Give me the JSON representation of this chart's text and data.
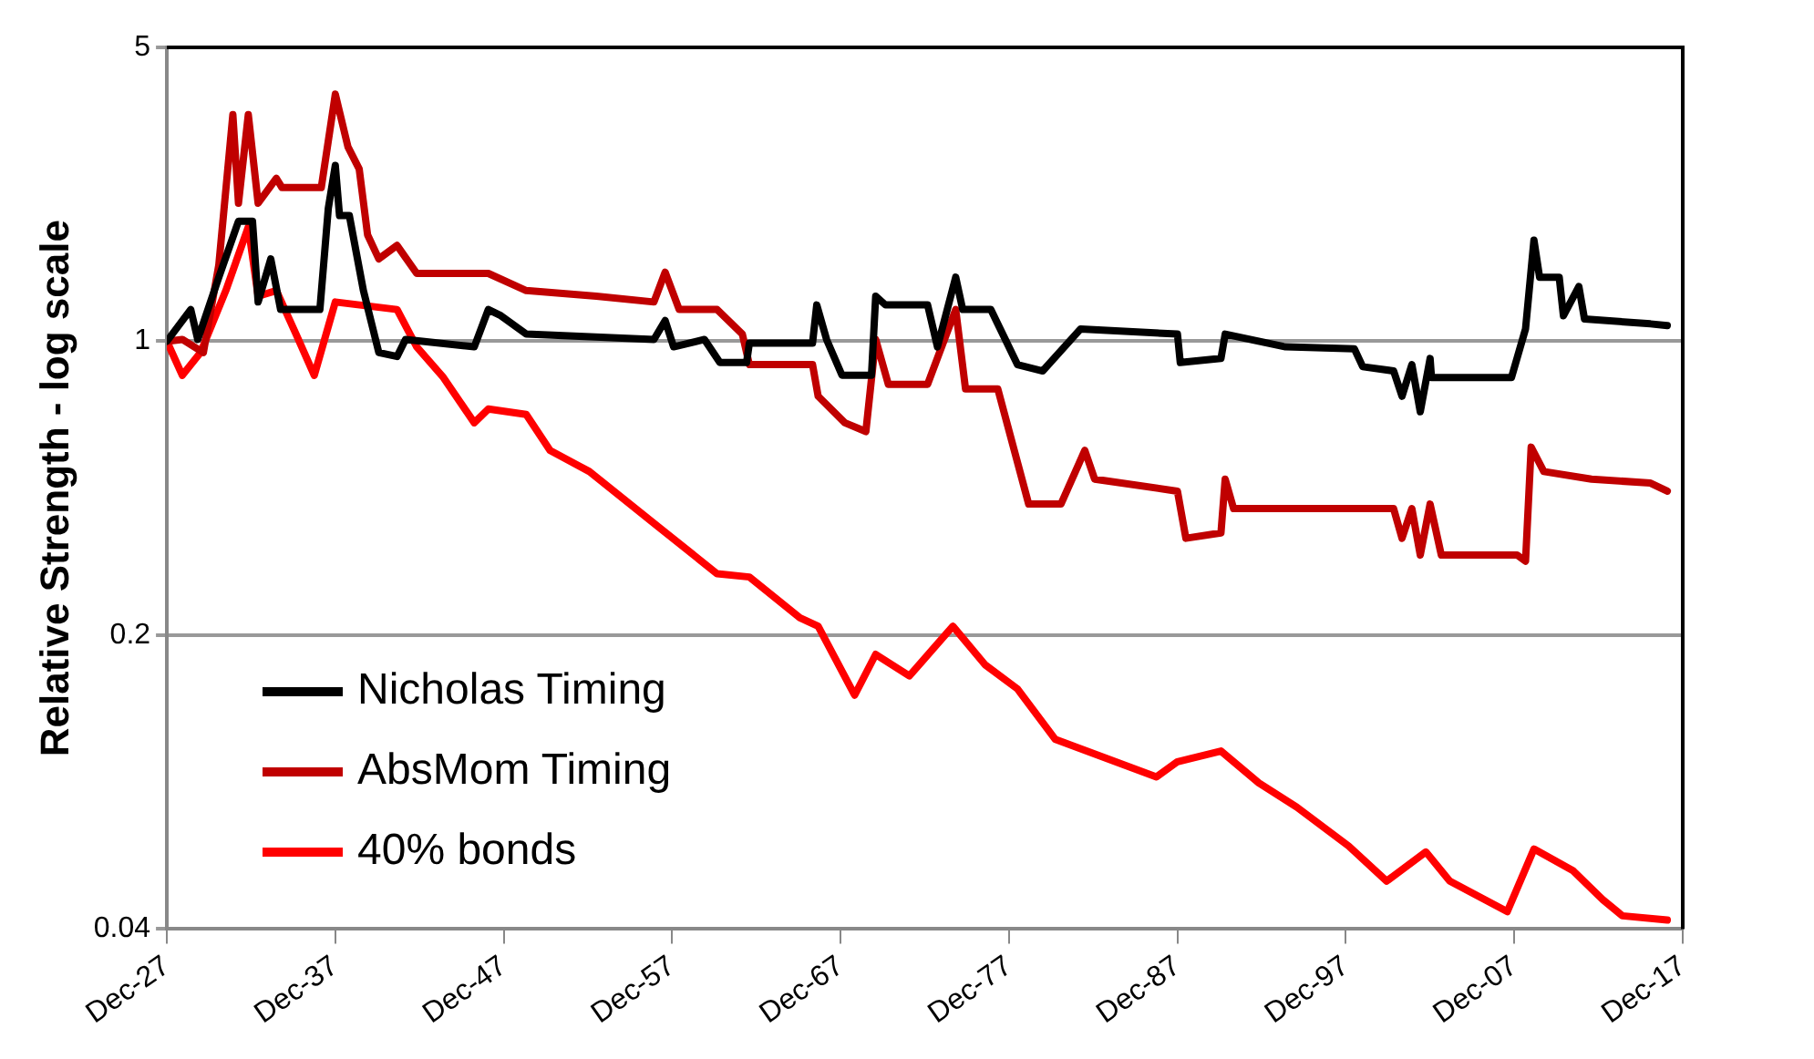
{
  "chart_data": {
    "type": "line",
    "ylabel": "Relative Strength - log scale",
    "log": "y",
    "grid": "y",
    "legend": "bottom left",
    "marker": "none",
    "line_style": "solid",
    "xlim": [
      "1927-12",
      "2017-12"
    ],
    "xticks": [
      {
        "value": "1927-12",
        "label": "Dec-27"
      },
      {
        "value": "1937-12",
        "label": "Dec-37"
      },
      {
        "value": "1947-12",
        "label": "Dec-47"
      },
      {
        "value": "1957-12",
        "label": "Dec-57"
      },
      {
        "value": "1967-12",
        "label": "Dec-67"
      },
      {
        "value": "1977-12",
        "label": "Dec-77"
      },
      {
        "value": "1987-12",
        "label": "Dec-87"
      },
      {
        "value": "1997-12",
        "label": "Dec-97"
      },
      {
        "value": "2007-12",
        "label": "Dec-07"
      },
      {
        "value": "2017-12",
        "label": "Dec-17"
      }
    ],
    "ylim": [
      0.04,
      5
    ],
    "yticks": [
      0.04,
      0.2,
      1,
      5
    ],
    "series": [
      {
        "name": "Nicholas Timing",
        "color": "#000000",
        "x": [
          "1927-12",
          "1929-05",
          "1929-10",
          "1931-01",
          "1932-03",
          "1933-01",
          "1933-05",
          "1934-02",
          "1934-09",
          "1937-01",
          "1937-07",
          "1937-12",
          "1938-03",
          "1938-10",
          "1939-08",
          "1940-07",
          "1941-08",
          "1942-02",
          "1946-03",
          "1947-01",
          "1947-10",
          "1949-04",
          "1956-11",
          "1957-07",
          "1958-01",
          "1959-11",
          "1960-10",
          "1962-05",
          "1962-07",
          "1966-04",
          "1966-07",
          "1967-02",
          "1968-01",
          "1969-10",
          "1970-01",
          "1970-08",
          "1973-02",
          "1973-09",
          "1974-10",
          "1975-03",
          "1976-11",
          "1978-06",
          "1979-12",
          "1982-03",
          "1987-12",
          "1988-02",
          "1990-07",
          "1990-10",
          "1994-05",
          "1998-06",
          "1998-12",
          "2000-10",
          "2001-04",
          "2001-11",
          "2002-05",
          "2002-12",
          "2003-01",
          "2007-10",
          "2008-08",
          "2009-02",
          "2009-06",
          "2010-08",
          "2010-11",
          "2011-10",
          "2012-02",
          "2016-01",
          "2017-01"
        ],
        "values": [
          1.0,
          1.19,
          1.01,
          1.42,
          1.93,
          1.93,
          1.24,
          1.57,
          1.19,
          1.19,
          2.07,
          2.62,
          1.99,
          1.99,
          1.32,
          0.94,
          0.92,
          1.01,
          0.97,
          1.19,
          1.15,
          1.04,
          1.01,
          1.12,
          0.97,
          1.01,
          0.89,
          0.89,
          0.99,
          0.99,
          1.22,
          1.01,
          0.83,
          0.83,
          1.28,
          1.22,
          1.22,
          0.97,
          1.42,
          1.19,
          1.19,
          0.88,
          0.85,
          1.07,
          1.04,
          0.89,
          0.91,
          1.04,
          0.97,
          0.96,
          0.87,
          0.85,
          0.74,
          0.88,
          0.68,
          0.91,
          0.82,
          0.82,
          1.07,
          1.74,
          1.42,
          1.42,
          1.15,
          1.35,
          1.13,
          1.1,
          1.09
        ]
      },
      {
        "name": "AbsMom Timing",
        "color": "#c00000",
        "x": [
          "1927-12",
          "1928-11",
          "1930-02",
          "1931-01",
          "1931-11",
          "1932-03",
          "1932-10",
          "1933-05",
          "1934-06",
          "1934-10",
          "1937-02",
          "1937-12",
          "1938-09",
          "1939-05",
          "1939-11",
          "1940-07",
          "1941-08",
          "1942-10",
          "1947-01",
          "1949-04",
          "1953-06",
          "1956-11",
          "1957-07",
          "1958-05",
          "1960-08",
          "1962-02",
          "1962-07",
          "1966-04",
          "1966-08",
          "1968-03",
          "1969-06",
          "1970-01",
          "1970-10",
          "1973-02",
          "1974-10",
          "1975-05",
          "1977-04",
          "1979-02",
          "1981-01",
          "1982-06",
          "1983-01",
          "1987-12",
          "1988-06",
          "1990-07",
          "1990-10",
          "1991-04",
          "2000-10",
          "2001-04",
          "2001-11",
          "2002-05",
          "2002-12",
          "2003-08",
          "2008-02",
          "2008-08",
          "2008-12",
          "2009-09",
          "2012-07",
          "2016-01",
          "2017-01"
        ],
        "values": [
          1.0,
          1.01,
          0.94,
          1.52,
          3.46,
          2.13,
          3.46,
          2.13,
          2.44,
          2.32,
          2.32,
          3.87,
          2.9,
          2.57,
          1.79,
          1.57,
          1.69,
          1.45,
          1.45,
          1.32,
          1.28,
          1.24,
          1.46,
          1.19,
          1.19,
          1.04,
          0.88,
          0.88,
          0.74,
          0.64,
          0.61,
          1.01,
          0.79,
          0.79,
          1.19,
          0.77,
          0.77,
          0.41,
          0.41,
          0.55,
          0.47,
          0.44,
          0.34,
          0.35,
          0.47,
          0.4,
          0.4,
          0.34,
          0.4,
          0.31,
          0.41,
          0.31,
          0.31,
          0.3,
          0.56,
          0.49,
          0.47,
          0.46,
          0.44
        ]
      },
      {
        "name": "40% bonds",
        "color": "#ff0000",
        "x": [
          "1927-12",
          "1928-11",
          "1929-12",
          "1931-06",
          "1932-10",
          "1933-05",
          "1934-06",
          "1935-08",
          "1936-09",
          "1937-12",
          "1941-08",
          "1942-10",
          "1944-05",
          "1946-03",
          "1947-01",
          "1949-04",
          "1950-09",
          "1953-01",
          "1957-03",
          "1960-08",
          "1962-07",
          "1965-07",
          "1966-08",
          "1968-10",
          "1970-01",
          "1972-01",
          "1974-08",
          "1976-07",
          "1978-06",
          "1980-09",
          "1986-09",
          "1987-12",
          "1990-07",
          "1992-10",
          "1995-01",
          "1998-02",
          "2000-05",
          "2002-09",
          "2004-02",
          "2007-07",
          "2009-02",
          "2011-06",
          "2013-03",
          "2014-05",
          "2017-01"
        ],
        "values": [
          1.0,
          0.83,
          0.94,
          1.32,
          1.87,
          1.28,
          1.32,
          1.04,
          0.83,
          1.24,
          1.19,
          0.97,
          0.82,
          0.64,
          0.69,
          0.67,
          0.55,
          0.49,
          0.36,
          0.28,
          0.275,
          0.22,
          0.21,
          0.144,
          0.18,
          0.16,
          0.21,
          0.17,
          0.149,
          0.113,
          0.092,
          0.1,
          0.106,
          0.089,
          0.078,
          0.063,
          0.052,
          0.061,
          0.052,
          0.044,
          0.062,
          0.055,
          0.047,
          0.043,
          0.042
        ]
      }
    ]
  }
}
